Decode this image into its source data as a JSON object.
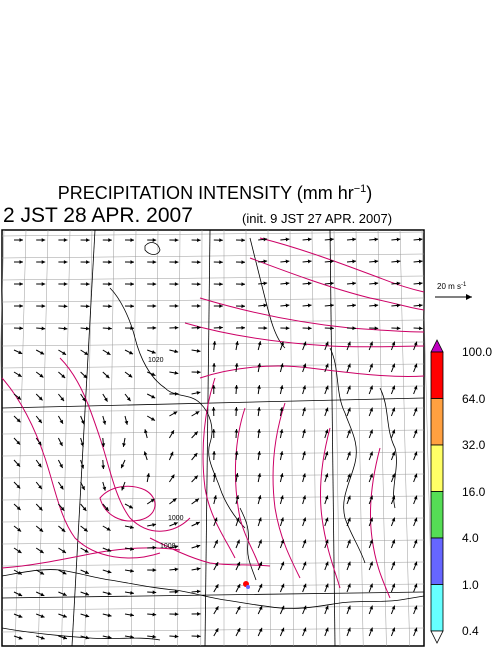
{
  "title": {
    "main": "PRECIPITATION INTENSITY (mm hr",
    "exp": "−1",
    "close": ")"
  },
  "time": {
    "valid": "2 JST 28 APR. 2007",
    "init": "(init. 9 JST 27 APR. 2007)"
  },
  "scale_arrow": {
    "label": "20 m s",
    "exp": "-1"
  },
  "legend": {
    "levels": [
      {
        "label": "100.0",
        "color": "#c000c0"
      },
      {
        "label": "64.0",
        "color": "#ff0000"
      },
      {
        "label": "32.0",
        "color": "#ffa040"
      },
      {
        "label": "16.0",
        "color": "#ffff66"
      },
      {
        "label": "4.0",
        "color": "#55dd55"
      },
      {
        "label": "1.0",
        "color": "#6666ff"
      },
      {
        "label": "0.4",
        "color": "#66ffff"
      }
    ],
    "colors": [
      "#c000c0",
      "#ff0000",
      "#ffa040",
      "#ffff66",
      "#55dd55",
      "#6666ff",
      "#66ffff",
      "#ffffff"
    ]
  },
  "map": {
    "contour_color": "#cc0066",
    "grid_color": "#999999",
    "contour_labels": [
      "1020",
      "1000",
      "1008"
    ]
  }
}
